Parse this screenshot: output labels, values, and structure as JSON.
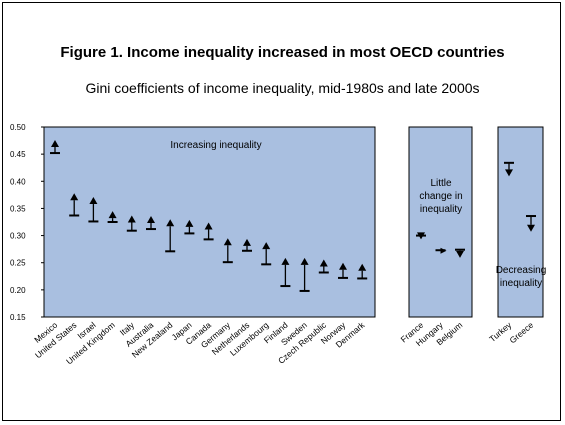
{
  "title": "Figure 1. Income inequality increased in most OECD countries",
  "subtitle": "Gini coefficients of income inequality, mid-1980s and late 2000s",
  "chart_data": {
    "type": "arrow-range",
    "title": "Figure 1. Income inequality increased in most OECD countries",
    "subtitle": "Gini coefficients of income inequality, mid-1980s and late 2000s",
    "ylim": [
      0.15,
      0.5
    ],
    "yticks": [
      "0.15",
      "0.20",
      "0.25",
      "0.30",
      "0.35",
      "0.40",
      "0.45",
      "0.50"
    ],
    "grid": false,
    "colors": {
      "panel": "#a9bfe0",
      "mark": "#000000"
    },
    "panels": [
      {
        "annotation": [
          "Increasing inequality"
        ],
        "points": [
          {
            "label": "Mexico",
            "start": 0.452,
            "end": 0.476
          },
          {
            "label": "United States",
            "start": 0.337,
            "end": 0.378
          },
          {
            "label": "Israel",
            "start": 0.326,
            "end": 0.371
          },
          {
            "label": "United Kingdom",
            "start": 0.325,
            "end": 0.345
          },
          {
            "label": "Italy",
            "start": 0.309,
            "end": 0.337
          },
          {
            "label": "Australia",
            "start": 0.312,
            "end": 0.336
          },
          {
            "label": "New Zealand",
            "start": 0.271,
            "end": 0.33
          },
          {
            "label": "Japan",
            "start": 0.304,
            "end": 0.329
          },
          {
            "label": "Canada",
            "start": 0.293,
            "end": 0.324
          },
          {
            "label": "Germany",
            "start": 0.251,
            "end": 0.295
          },
          {
            "label": "Netherlands",
            "start": 0.272,
            "end": 0.294
          },
          {
            "label": "Luxembourg",
            "start": 0.247,
            "end": 0.288
          },
          {
            "label": "Finland",
            "start": 0.207,
            "end": 0.259
          },
          {
            "label": "Sweden",
            "start": 0.198,
            "end": 0.259
          },
          {
            "label": "Czech Republic",
            "start": 0.232,
            "end": 0.256
          },
          {
            "label": "Norway",
            "start": 0.222,
            "end": 0.25
          },
          {
            "label": "Denmark",
            "start": 0.221,
            "end": 0.248
          }
        ]
      },
      {
        "annotation": [
          "Little",
          "change in",
          "inequality"
        ],
        "points": [
          {
            "label": "France",
            "start": 0.3,
            "end": 0.293
          },
          {
            "label": "Hungary",
            "start": 0.273,
            "end": 0.272
          },
          {
            "label": "Belgium",
            "start": 0.274,
            "end": 0.259
          }
        ]
      },
      {
        "annotation": [
          "Decreasing",
          "inequality"
        ],
        "points": [
          {
            "label": "Turkey",
            "start": 0.434,
            "end": 0.409
          },
          {
            "label": "Greece",
            "start": 0.336,
            "end": 0.307
          }
        ]
      }
    ]
  }
}
